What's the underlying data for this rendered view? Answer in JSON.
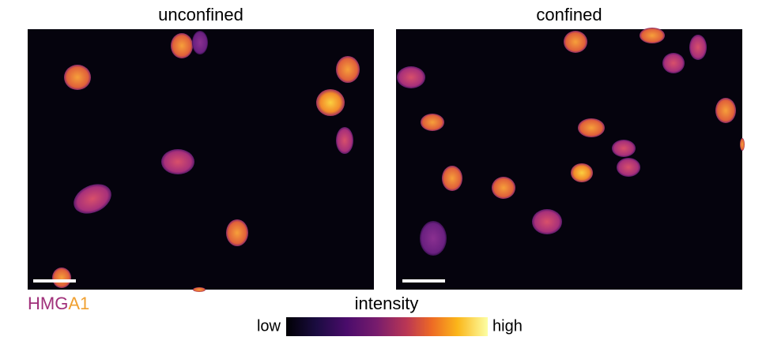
{
  "panels": [
    {
      "title": "unconfined"
    },
    {
      "title": "confined"
    }
  ],
  "stain_label": {
    "parts": [
      "HMG",
      "A1"
    ]
  },
  "colorbar": {
    "title": "intensity",
    "low": "low",
    "high": "high"
  }
}
